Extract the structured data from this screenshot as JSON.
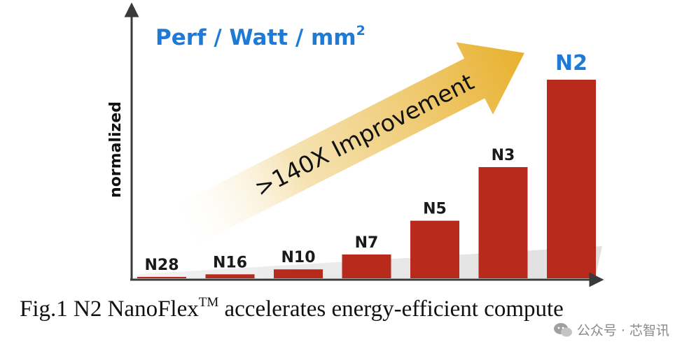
{
  "chart_data": {
    "type": "bar",
    "title": "Perf / Watt / mm",
    "title_superscript": "2",
    "ylabel": "normalized",
    "xlabel": "",
    "categories": [
      "N28",
      "N16",
      "N10",
      "N7",
      "N5",
      "N3",
      "N2"
    ],
    "values": [
      0.5,
      2,
      4.5,
      12,
      29,
      56,
      100
    ],
    "ylim": [
      0,
      100
    ],
    "highlight_category": "N2",
    "annotation": ">140X Improvement",
    "bar_color": "#b82a1c",
    "highlight_color": "#1f7ad6",
    "arrow_color": "#e9b533",
    "grid": false
  },
  "caption": {
    "prefix": "Fig.1  N2 NanoFlex",
    "tm": "TM",
    "suffix": " accelerates energy-efficient compute"
  },
  "watermark": {
    "icon": "wechat-icon",
    "text": "公众号 · 芯智讯"
  }
}
